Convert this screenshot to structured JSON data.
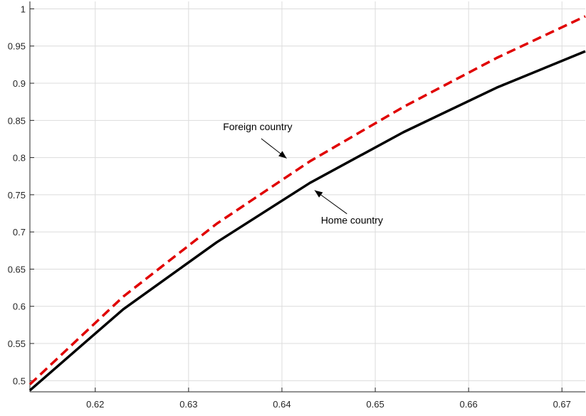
{
  "chart_data": {
    "type": "line",
    "title": "",
    "xlabel": "",
    "ylabel": "",
    "xlim": [
      0.613,
      0.6725
    ],
    "ylim": [
      0.485,
      1.01
    ],
    "grid": true,
    "xticks": [
      0.62,
      0.63,
      0.64,
      0.65,
      0.66,
      0.67
    ],
    "xtick_labels": [
      "0.62",
      "0.63",
      "0.64",
      "0.65",
      "0.66",
      "0.67"
    ],
    "yticks": [
      0.5,
      0.55,
      0.6,
      0.65,
      0.7,
      0.75,
      0.8,
      0.85,
      0.9,
      0.95,
      1.0
    ],
    "ytick_labels": [
      "0.5",
      "0.55",
      "0.6",
      "0.65",
      "0.7",
      "0.75",
      "0.8",
      "0.85",
      "0.9",
      "0.95",
      "1"
    ],
    "series": [
      {
        "name": "",
        "color": "#e00000",
        "style": "dashed",
        "x": [
          0.613,
          0.623,
          0.633,
          0.643,
          0.653,
          0.663,
          0.6725
        ],
        "y": [
          0.495,
          0.613,
          0.711,
          0.795,
          0.868,
          0.934,
          0.99
        ]
      },
      {
        "name": "",
        "color": "#000000",
        "style": "solid",
        "x": [
          0.613,
          0.623,
          0.633,
          0.643,
          0.653,
          0.663,
          0.6725
        ],
        "y": [
          0.487,
          0.596,
          0.686,
          0.766,
          0.834,
          0.894,
          0.943
        ]
      }
    ],
    "annotations": [
      {
        "text": "Foreign country",
        "x": 0.6374,
        "y": 0.837,
        "arrow_to": [
          0.6405,
          0.799
        ]
      },
      {
        "text": "Home country",
        "x": 0.6475,
        "y": 0.711,
        "arrow_to": [
          0.6435,
          0.756
        ]
      }
    ]
  }
}
